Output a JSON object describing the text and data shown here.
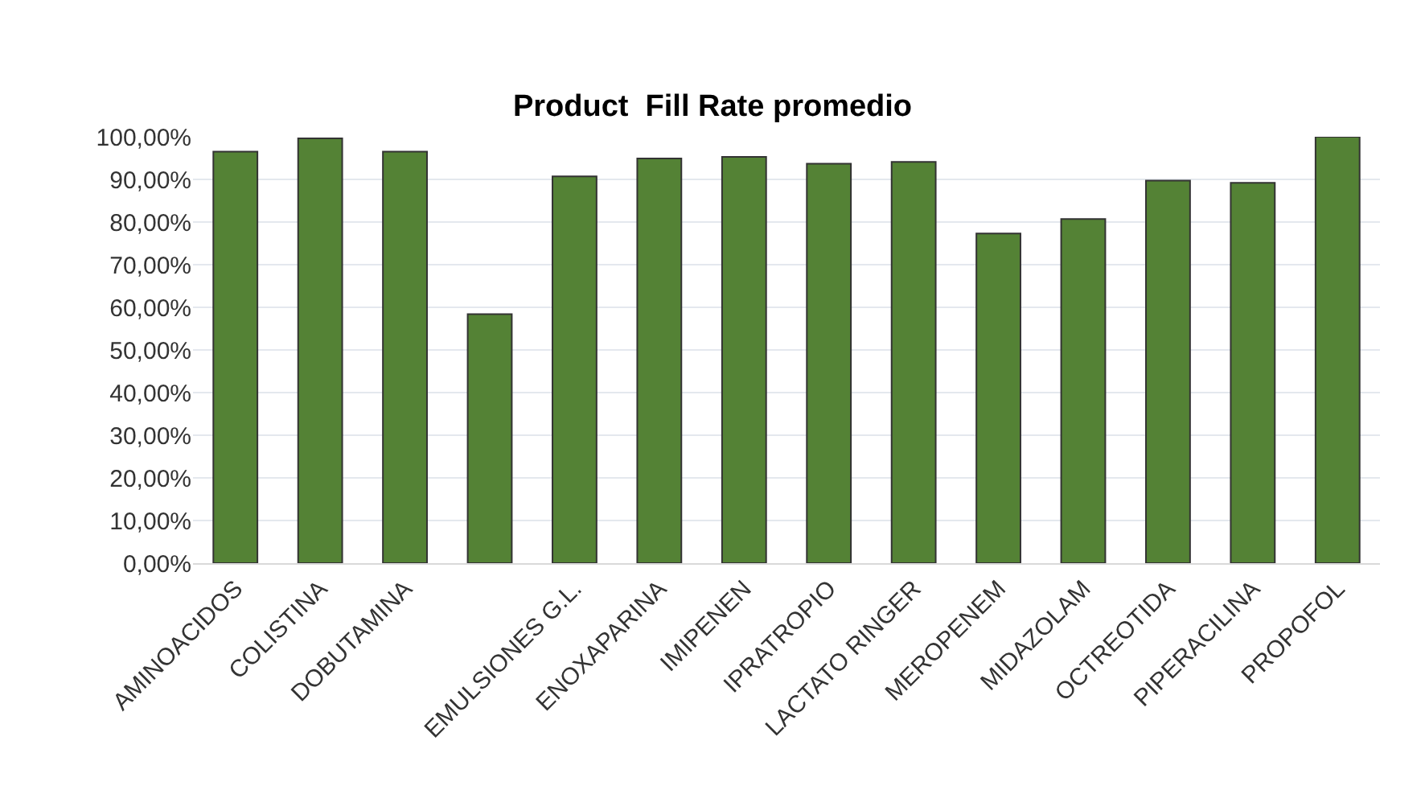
{
  "chart_data": {
    "type": "bar",
    "title": "Product  Fill Rate promedio",
    "categories": [
      "AMINOACIDOS",
      "COLISTINA",
      "DOBUTAMINA",
      null,
      "EMULSIONES G.L.",
      "ENOXAPARINA",
      "IMIPENEN",
      "IPRATROPIO",
      "LACTATO RINGER",
      "MEROPENEM",
      "MIDAZOLAM",
      "OCTREOTIDA",
      "PIPERACILINA",
      "PROPOFOL"
    ],
    "values": [
      96.5,
      99.6,
      96.5,
      58.4,
      90.7,
      94.9,
      95.3,
      93.7,
      94.1,
      77.3,
      80.7,
      89.7,
      89.2,
      100
    ],
    "color": "#548235",
    "ylim": [
      0,
      100
    ],
    "yticks": [
      {
        "value": 0,
        "label": "0,00%"
      },
      {
        "value": 10,
        "label": "10,00%"
      },
      {
        "value": 20,
        "label": "20,00%"
      },
      {
        "value": 30,
        "label": "30,00%"
      },
      {
        "value": 40,
        "label": "40,00%"
      },
      {
        "value": 50,
        "label": "50,00%"
      },
      {
        "value": 60,
        "label": "60,00%"
      },
      {
        "value": 70,
        "label": "70,00%"
      },
      {
        "value": 80,
        "label": "80,00%"
      },
      {
        "value": 90,
        "label": "90,00%"
      },
      {
        "value": 100,
        "label": "100,00%"
      }
    ],
    "grid": true,
    "legend": false
  }
}
